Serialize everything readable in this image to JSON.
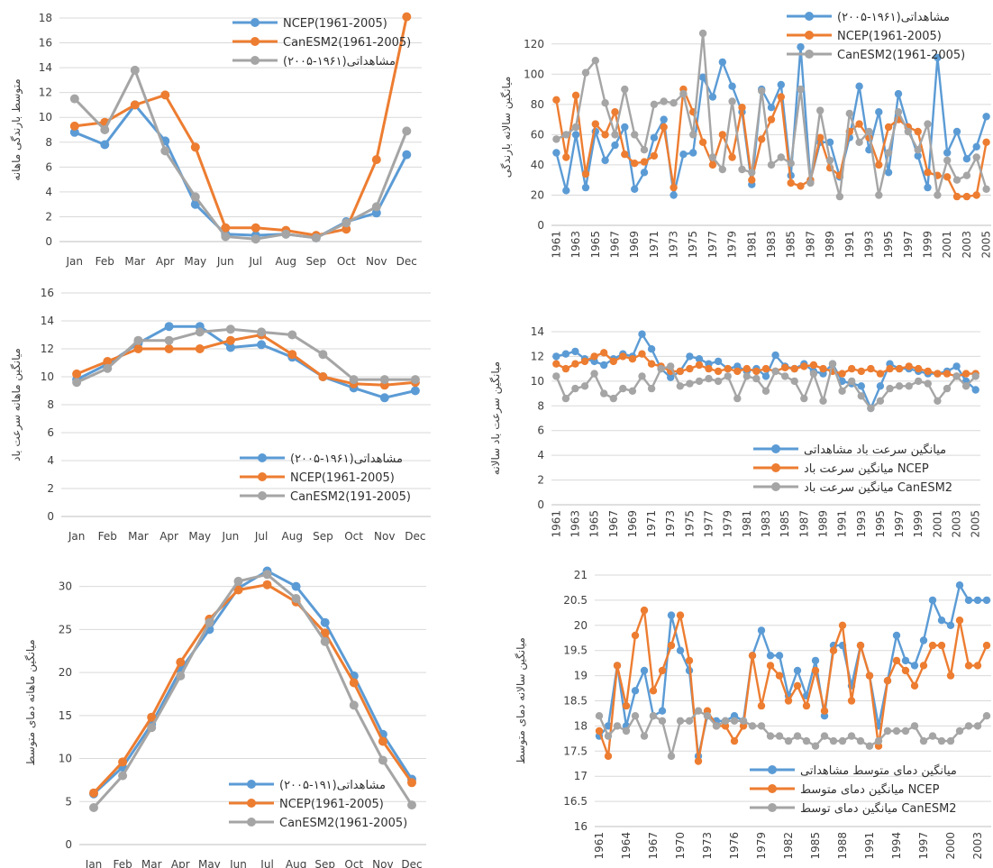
{
  "chart_data": [
    {
      "id": "precip-monthly",
      "type": "line",
      "ylabel": "متوسط بارندگی ماهانه",
      "ylim": [
        0,
        18
      ],
      "yticks": [
        0,
        2,
        4,
        6,
        8,
        10,
        12,
        14,
        16,
        18
      ],
      "categories": [
        "Jan",
        "Feb",
        "Mar",
        "Apr",
        "May",
        "Jun",
        "Jul",
        "Aug",
        "Sep",
        "Oct",
        "Nov",
        "Dec"
      ],
      "legend_position": "top-right",
      "series": [
        {
          "name": "NCEP(1961-2005)",
          "color": "#5b9bd5",
          "values": [
            8.8,
            7.8,
            11.0,
            8.1,
            3.0,
            0.6,
            0.5,
            0.6,
            0.3,
            1.6,
            2.3,
            7.0
          ]
        },
        {
          "name": "CanESM2(1961-2005)",
          "color": "#ed7d31",
          "values": [
            9.3,
            9.6,
            11.0,
            11.8,
            7.6,
            1.1,
            1.1,
            0.9,
            0.5,
            1.0,
            6.6,
            18.1
          ]
        },
        {
          "name": "مشاهداتی(۱۹۶۱-۲۰۰۵)",
          "color": "#a5a5a5",
          "values": [
            11.5,
            9.0,
            13.8,
            7.3,
            3.6,
            0.4,
            0.2,
            0.6,
            0.3,
            1.5,
            2.8,
            8.9
          ]
        }
      ]
    },
    {
      "id": "precip-annual",
      "type": "line",
      "ylabel": "میانگین سالانه بارندگی",
      "ylim": [
        0,
        130
      ],
      "yticks": [
        0,
        20,
        40,
        60,
        80,
        100,
        120
      ],
      "x": [
        1961,
        1962,
        1963,
        1964,
        1965,
        1966,
        1967,
        1968,
        1969,
        1970,
        1971,
        1972,
        1973,
        1974,
        1975,
        1976,
        1977,
        1978,
        1979,
        1980,
        1981,
        1982,
        1983,
        1984,
        1985,
        1986,
        1987,
        1988,
        1989,
        1990,
        1991,
        1992,
        1993,
        1994,
        1995,
        1996,
        1997,
        1998,
        1999,
        2000,
        2001,
        2002,
        2003,
        2004,
        2005
      ],
      "xtick_labels": [
        "1961",
        "1963",
        "1965",
        "1967",
        "1969",
        "1971",
        "1973",
        "1975",
        "1977",
        "1979",
        "1981",
        "1983",
        "1985",
        "1987",
        "1989",
        "1991",
        "1993",
        "1995",
        "1997",
        "1999",
        "2001",
        "2003",
        "2005"
      ],
      "legend_position": "top-right",
      "series": [
        {
          "name": "مشاهداتی(۱۹۶۱-۲۰۰۵)",
          "color": "#5b9bd5",
          "values": [
            48,
            23,
            60,
            25,
            62,
            43,
            53,
            65,
            24,
            35,
            58,
            70,
            20,
            47,
            48,
            98,
            85,
            108,
            92,
            75,
            27,
            90,
            78,
            93,
            33,
            118,
            30,
            55,
            55,
            32,
            58,
            92,
            50,
            75,
            35,
            87,
            65,
            46,
            25,
            111,
            48,
            62,
            44,
            52,
            72
          ]
        },
        {
          "name": "NCEP(1961-2005)",
          "color": "#ed7d31",
          "values": [
            83,
            45,
            86,
            34,
            67,
            60,
            75,
            47,
            41,
            42,
            46,
            65,
            25,
            90,
            75,
            55,
            40,
            60,
            45,
            78,
            30,
            57,
            70,
            85,
            28,
            26,
            30,
            58,
            38,
            33,
            62,
            67,
            58,
            40,
            65,
            70,
            65,
            62,
            35,
            33,
            32,
            19,
            19,
            20,
            55
          ]
        },
        {
          "name": "CanESM2(1961-2005)",
          "color": "#a5a5a5",
          "values": [
            57,
            60,
            65,
            101,
            109,
            81,
            60,
            90,
            60,
            50,
            80,
            82,
            81,
            87,
            60,
            127,
            45,
            37,
            82,
            37,
            35,
            89,
            40,
            45,
            41,
            90,
            28,
            76,
            43,
            19,
            74,
            55,
            62,
            20,
            48,
            75,
            62,
            50,
            67,
            20,
            43,
            30,
            33,
            45,
            24
          ]
        }
      ]
    },
    {
      "id": "wind-monthly",
      "type": "line",
      "ylabel": "میانگین ماهانه سرعت باد",
      "ylim": [
        0,
        16
      ],
      "yticks": [
        0,
        2,
        4,
        6,
        8,
        10,
        12,
        14,
        16
      ],
      "categories": [
        "Jan",
        "Feb",
        "Mar",
        "Apr",
        "May",
        "Jun",
        "Jul",
        "Aug",
        "Sep",
        "Oct",
        "Nov",
        "Dec"
      ],
      "legend_position": "bottom-right",
      "series": [
        {
          "name": "مشاهداتی(۱۹۶۱-۲۰۰۵)",
          "color": "#5b9bd5",
          "values": [
            9.8,
            10.9,
            12.4,
            13.6,
            13.6,
            12.1,
            12.3,
            11.4,
            10.0,
            9.2,
            8.5,
            9.0
          ]
        },
        {
          "name": "NCEP(1961-2005)",
          "color": "#ed7d31",
          "values": [
            10.2,
            11.1,
            12.0,
            12.0,
            12.0,
            12.6,
            13.0,
            11.6,
            10.0,
            9.5,
            9.4,
            9.6
          ]
        },
        {
          "name": "CanESM2(191-2005)",
          "color": "#a5a5a5",
          "values": [
            9.6,
            10.6,
            12.6,
            12.6,
            13.2,
            13.4,
            13.2,
            13.0,
            11.6,
            9.8,
            9.8,
            9.8
          ]
        }
      ]
    },
    {
      "id": "wind-annual",
      "type": "line",
      "ylabel": "میانگین سرعت باد سالانه",
      "ylim": [
        0,
        14
      ],
      "yticks": [
        0,
        2,
        4,
        6,
        8,
        10,
        12,
        14
      ],
      "x": [
        1961,
        1962,
        1963,
        1964,
        1965,
        1966,
        1967,
        1968,
        1969,
        1970,
        1971,
        1972,
        1973,
        1974,
        1975,
        1976,
        1977,
        1978,
        1979,
        1980,
        1981,
        1982,
        1983,
        1984,
        1985,
        1986,
        1987,
        1988,
        1989,
        1990,
        1991,
        1992,
        1993,
        1994,
        1995,
        1996,
        1997,
        1998,
        1999,
        2000,
        2001,
        2002,
        2003,
        2004,
        2005
      ],
      "xtick_labels": [
        "1961",
        "1963",
        "1965",
        "1967",
        "1969",
        "1971",
        "1973",
        "1975",
        "1977",
        "1979",
        "1981",
        "1983",
        "1985",
        "1987",
        "1989",
        "1991",
        "1993",
        "1995",
        "1997",
        "1999",
        "2001",
        "2003",
        "2005"
      ],
      "legend_position": "bottom-right",
      "series": [
        {
          "name": "میانگین سرعت باد مشاهداتی",
          "color": "#5b9bd5",
          "values": [
            12.0,
            12.2,
            12.4,
            11.8,
            11.6,
            11.3,
            11.8,
            12.2,
            12.0,
            13.8,
            12.6,
            11.0,
            10.3,
            10.8,
            12.0,
            11.8,
            11.4,
            11.6,
            11.0,
            11.2,
            10.8,
            11.0,
            10.4,
            12.1,
            11.2,
            11.0,
            11.4,
            10.8,
            10.6,
            11.4,
            10.0,
            9.8,
            9.6,
            7.8,
            9.6,
            11.4,
            11.0,
            11.0,
            10.8,
            10.6,
            10.6,
            10.8,
            11.2,
            10.0,
            9.3
          ]
        },
        {
          "name": "میانگین سرعت باد NCEP",
          "color": "#ed7d31",
          "values": [
            11.4,
            11.0,
            11.4,
            11.6,
            12.0,
            12.3,
            11.6,
            12.0,
            11.8,
            12.2,
            11.4,
            11.2,
            10.8,
            10.8,
            11.0,
            11.3,
            11.0,
            10.8,
            11.0,
            10.8,
            11.0,
            10.8,
            11.0,
            10.8,
            11.1,
            11.0,
            11.2,
            11.3,
            11.0,
            10.8,
            10.6,
            11.0,
            10.8,
            11.0,
            10.6,
            11.0,
            11.0,
            11.2,
            11.0,
            10.8,
            10.6,
            10.6,
            10.4,
            10.6,
            10.6
          ]
        },
        {
          "name": "میانگین سرعت باد CanESM2",
          "color": "#a5a5a5",
          "values": [
            10.4,
            8.6,
            9.4,
            9.6,
            10.6,
            9.0,
            8.6,
            9.4,
            9.2,
            10.4,
            9.4,
            11.0,
            11.2,
            9.6,
            9.8,
            10.0,
            10.2,
            10.0,
            10.4,
            8.6,
            10.4,
            10.2,
            9.2,
            10.8,
            10.4,
            10.0,
            8.6,
            10.6,
            8.4,
            11.4,
            9.2,
            10.0,
            8.8,
            7.8,
            8.4,
            9.4,
            9.6,
            9.6,
            10.0,
            9.8,
            8.4,
            9.4,
            10.4,
            9.6,
            10.4
          ]
        }
      ]
    },
    {
      "id": "temp-monthly",
      "type": "line",
      "ylabel": "میانگین ماهانه دمای متوسط",
      "ylim": [
        0,
        33
      ],
      "yticks": [
        0,
        5,
        10,
        15,
        20,
        25,
        30
      ],
      "categories": [
        "Jan",
        "Feb",
        "Mar",
        "Apr",
        "May",
        "Jun",
        "Jul",
        "Aug",
        "Sep",
        "Oct",
        "Nov",
        "Dec"
      ],
      "legend_position": "bottom-right",
      "series": [
        {
          "name": "مشاهداتی(۱۹۱-۲۰۰۵)",
          "color": "#5b9bd5",
          "values": [
            5.9,
            9.0,
            14.0,
            20.3,
            25.0,
            29.8,
            31.8,
            30.0,
            25.8,
            19.6,
            12.8,
            7.6
          ]
        },
        {
          "name": "NCEP(1961-2005)",
          "color": "#ed7d31",
          "values": [
            6.0,
            9.6,
            14.8,
            21.2,
            26.2,
            29.6,
            30.2,
            28.2,
            24.6,
            18.8,
            12.0,
            7.2
          ]
        },
        {
          "name": "CanESM2(1961-2005)",
          "color": "#a5a5a5",
          "values": [
            4.3,
            8.0,
            13.6,
            19.6,
            25.8,
            30.6,
            31.4,
            28.6,
            23.6,
            16.2,
            9.8,
            4.6
          ]
        }
      ]
    },
    {
      "id": "temp-annual",
      "type": "line",
      "ylabel": "میانگین سالانه دمای متوسط",
      "ylim": [
        16,
        21
      ],
      "yticks": [
        16,
        16.5,
        17,
        17.5,
        18,
        18.5,
        19,
        19.5,
        20,
        20.5,
        21
      ],
      "x": [
        1961,
        1962,
        1963,
        1964,
        1965,
        1966,
        1967,
        1968,
        1969,
        1970,
        1971,
        1972,
        1973,
        1974,
        1975,
        1976,
        1977,
        1978,
        1979,
        1980,
        1981,
        1982,
        1983,
        1984,
        1985,
        1986,
        1987,
        1988,
        1989,
        1990,
        1991,
        1992,
        1993,
        1994,
        1995,
        1996,
        1997,
        1998,
        1999,
        2000,
        2001,
        2002,
        2003,
        2004
      ],
      "xtick_labels": [
        "1961",
        "1964",
        "1967",
        "1970",
        "1973",
        "1976",
        "1979",
        "1982",
        "1985",
        "1988",
        "1991",
        "1994",
        "1997",
        "2000",
        "2003"
      ],
      "legend_position": "bottom-right",
      "series": [
        {
          "name": "میانگین دمای متوسط مشاهداتی",
          "color": "#5b9bd5",
          "values": [
            17.8,
            18.0,
            19.2,
            18.0,
            18.7,
            19.1,
            18.2,
            18.3,
            20.2,
            19.5,
            19.1,
            17.4,
            18.2,
            18.1,
            18.1,
            18.2,
            18.1,
            19.4,
            19.9,
            19.4,
            19.4,
            18.6,
            19.1,
            18.6,
            19.3,
            18.2,
            19.6,
            19.6,
            18.8,
            19.6,
            19.0,
            18.0,
            18.9,
            19.8,
            19.3,
            19.2,
            19.7,
            20.5,
            20.1,
            20.0,
            20.8,
            20.5,
            20.5,
            20.5
          ]
        },
        {
          "name": "میانگین دمای متوسط NCEP",
          "color": "#ed7d31",
          "values": [
            17.9,
            17.4,
            19.2,
            18.4,
            19.8,
            20.3,
            18.7,
            19.1,
            19.6,
            20.2,
            19.3,
            17.3,
            18.3,
            18.0,
            18.0,
            17.7,
            18.0,
            19.4,
            18.4,
            19.2,
            19.0,
            18.5,
            18.8,
            18.4,
            19.1,
            18.3,
            19.5,
            20.0,
            18.5,
            19.6,
            19.0,
            17.6,
            18.9,
            19.3,
            19.1,
            18.8,
            19.2,
            19.6,
            19.6,
            19.0,
            20.1,
            19.2,
            19.2,
            19.6
          ]
        },
        {
          "name": "میانگین دمای توسط CanESM2",
          "color": "#a5a5a5",
          "values": [
            18.2,
            17.8,
            18.0,
            17.9,
            18.2,
            17.8,
            18.2,
            18.1,
            17.4,
            18.1,
            18.1,
            18.3,
            18.2,
            18.0,
            18.1,
            18.1,
            18.1,
            18.0,
            18.0,
            17.8,
            17.8,
            17.7,
            17.8,
            17.7,
            17.6,
            17.8,
            17.7,
            17.7,
            17.8,
            17.7,
            17.6,
            17.7,
            17.9,
            17.9,
            17.9,
            18.0,
            17.7,
            17.8,
            17.7,
            17.7,
            17.9,
            18.0,
            18.0,
            18.2
          ]
        }
      ]
    }
  ]
}
